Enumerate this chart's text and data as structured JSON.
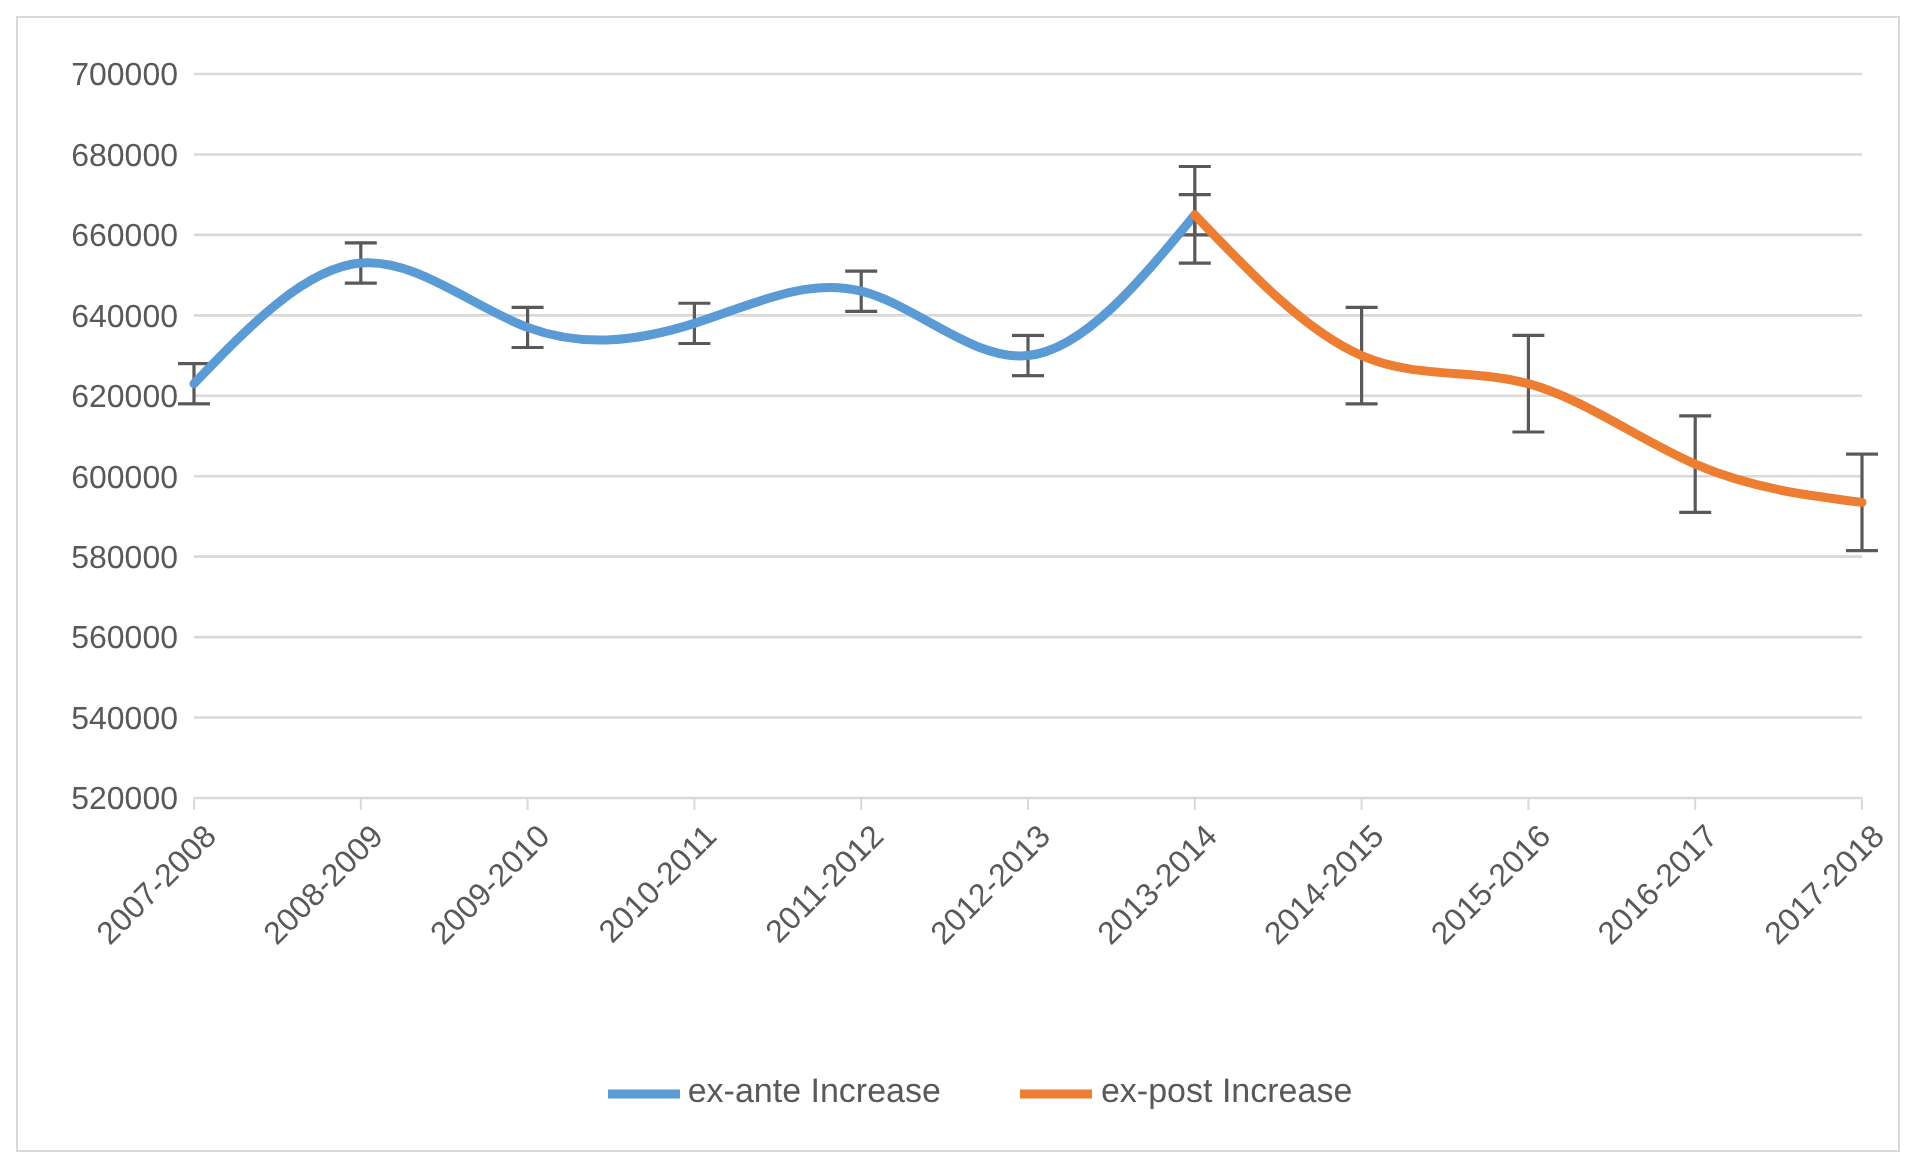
{
  "chart_data": {
    "type": "line",
    "categories": [
      "2007-2008",
      "2008-2009",
      "2009-2010",
      "2010-2011",
      "2011-2012",
      "2012-2013",
      "2013-2014",
      "2014-2015",
      "2015-2016",
      "2016-2017",
      "2017-2018"
    ],
    "series": [
      {
        "name": "ex-ante Increase",
        "color": "#5b9bd5",
        "values": [
          623000,
          653000,
          637000,
          638000,
          646000,
          630000,
          665000,
          null,
          null,
          null,
          null
        ],
        "errors": [
          5000,
          5000,
          5000,
          5000,
          5000,
          5000,
          5000,
          null,
          null,
          null,
          null
        ]
      },
      {
        "name": "ex-post Increase",
        "color": "#ed7d31",
        "values": [
          null,
          null,
          null,
          null,
          null,
          null,
          665000,
          630000,
          623000,
          603000,
          593500
        ],
        "errors": [
          null,
          null,
          null,
          null,
          null,
          null,
          12000,
          12000,
          12000,
          12000,
          12000
        ]
      }
    ],
    "ylim": [
      520000,
      700000
    ],
    "yticks": [
      520000,
      540000,
      560000,
      580000,
      600000,
      620000,
      640000,
      660000,
      680000,
      700000
    ],
    "grid": "y",
    "legend": "bottom",
    "marker": "none",
    "line_style": "solid"
  }
}
